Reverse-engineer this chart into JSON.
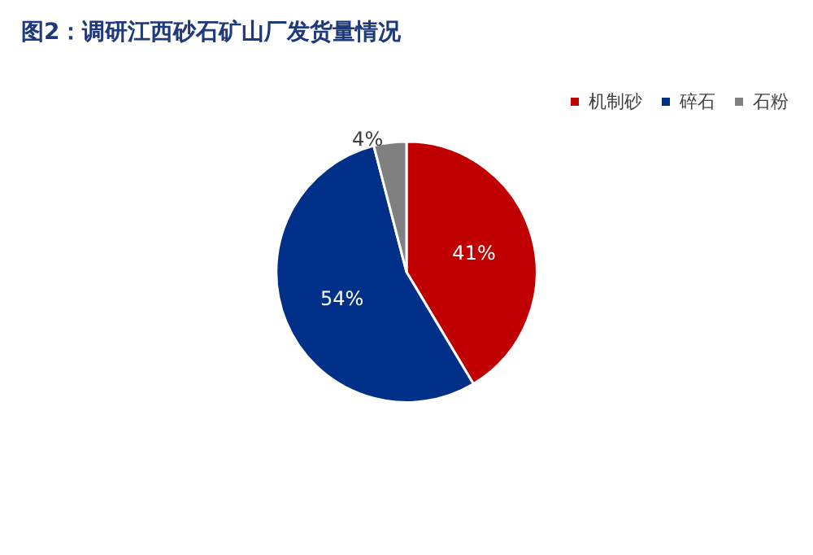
{
  "chart_data": {
    "type": "pie",
    "title": "图2：调研江西砂石矿山厂发货量情况",
    "categories": [
      "机制砂",
      "碎石",
      "石粉"
    ],
    "values": [
      41,
      54,
      4
    ],
    "colors": [
      "#c00000",
      "#003087",
      "#808080"
    ],
    "value_labels": [
      "41%",
      "54%",
      "4%"
    ],
    "legend": "top right"
  }
}
